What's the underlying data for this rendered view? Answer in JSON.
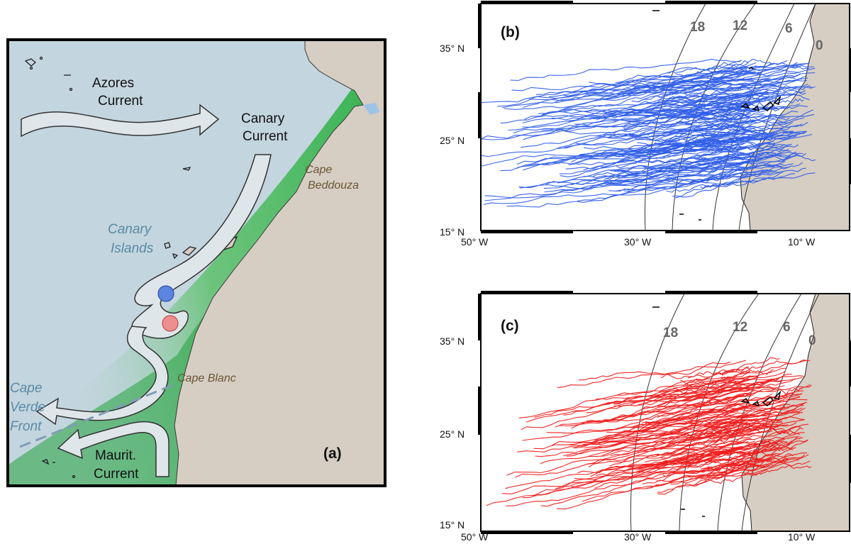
{
  "panel_a": {
    "label": "(a)",
    "currents": {
      "azores_line1": "Azores",
      "azores_line2": "Current",
      "canary_line1": "Canary",
      "canary_line2": "Current",
      "maurit_line1": "Maurit.",
      "maurit_line2": "Current"
    },
    "places": {
      "canary_islands_line1": "Canary",
      "canary_islands_line2": "Islands",
      "cape_verde_front_line1": "Cape",
      "cape_verde_front_line2": "Verde",
      "cape_verde_front_line3": "Front",
      "cape_beddouza_line1": "Cape",
      "cape_beddouza_line2": "Beddouza",
      "cape_blanc": "Cape Blanc"
    },
    "colors": {
      "ocean": "#c3d5de",
      "land": "#d6cdc3",
      "upwelling": "#2fb04a",
      "arrow_fill": "#dfe6ea",
      "anticyclonic_eddy": "#5b86e0",
      "cyclonic_eddy": "#ee8f8f"
    }
  },
  "panel_b": {
    "label": "(b)",
    "contour_labels": [
      "18",
      "12",
      "6",
      "0"
    ],
    "track_color": "#2f5ee8",
    "y_ticks": [
      "35° N",
      "25° N",
      "15° N"
    ],
    "x_ticks": [
      "50° W",
      "30° W",
      "10° W"
    ]
  },
  "panel_c": {
    "label": "(c)",
    "contour_labels": [
      "18",
      "12",
      "6",
      "0"
    ],
    "track_color": "#f01c1c",
    "y_ticks": [
      "35° N",
      "25° N",
      "15° N"
    ],
    "x_ticks": [
      "50° W",
      "30° W",
      "10° W"
    ]
  }
}
